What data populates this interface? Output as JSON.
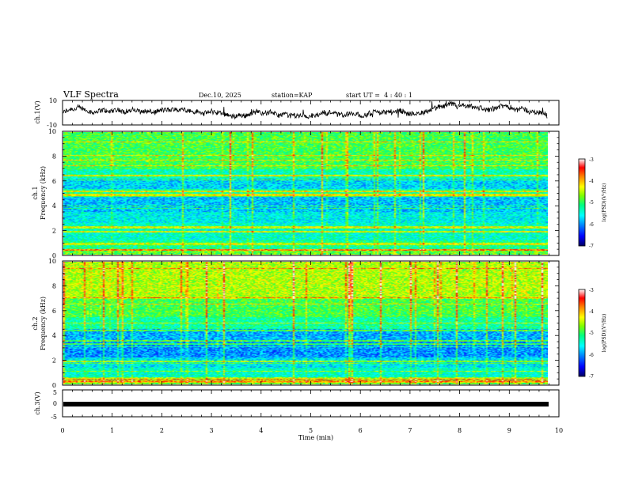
{
  "header": {
    "title": "VLF Spectra",
    "date": "Dec.10, 2025",
    "station": "station=KAP",
    "start": "start UT =  4 : 40 : 1"
  },
  "colors": {
    "spectrogram_scale": [
      "#000060",
      "#0000ff",
      "#0090ff",
      "#00ffff",
      "#00ff80",
      "#80ff00",
      "#ffff00",
      "#ff8000",
      "#ff0000",
      "#ffffff"
    ],
    "trace": "#000000"
  },
  "chart_data": [
    {
      "type": "line",
      "name": "ch1-waveform",
      "ylabel": "ch.1(V)",
      "ylim": [
        -10,
        10
      ],
      "yticks": [
        "10",
        "-10"
      ],
      "xlim": [
        0,
        10
      ],
      "description_values": "noisy waveform oscillating roughly between -5 and 5 V over 0 to 9.85 min"
    },
    {
      "type": "heatmap",
      "name": "ch1-spectrogram",
      "ylabel": "ch.1\nFrequency (kHz)",
      "ylim": [
        0,
        10
      ],
      "yticks": [
        "0",
        "2",
        "4",
        "6",
        "8",
        "10"
      ],
      "xlim": [
        0,
        9.85
      ],
      "colorbar": {
        "label": "log(PSD)(V²/Hz)",
        "range": [
          -7,
          -3
        ],
        "ticks": [
          "-3",
          "-4",
          "-5",
          "-6",
          "-7"
        ]
      }
    },
    {
      "type": "heatmap",
      "name": "ch2-spectrogram",
      "ylabel": "ch.2\nFrequency (kHz)",
      "ylim": [
        0,
        10
      ],
      "yticks": [
        "0",
        "2",
        "4",
        "6",
        "8",
        "10"
      ],
      "xlim": [
        0,
        9.85
      ],
      "colorbar": {
        "label": "log(PSD)(V²/Hz)",
        "range": [
          -7,
          -3
        ],
        "ticks": [
          "-3",
          "-4",
          "-5",
          "-6",
          "-7"
        ]
      }
    },
    {
      "type": "line",
      "name": "ch3-waveform",
      "ylabel": "ch.3(V)",
      "ylim": [
        -5,
        5
      ],
      "yticks": [
        "5",
        "0",
        "-5"
      ],
      "xlim": [
        0,
        10
      ],
      "level": 0
    }
  ],
  "xaxis": {
    "label": "Time (min)",
    "ticks": [
      "0",
      "1",
      "2",
      "3",
      "4",
      "5",
      "6",
      "7",
      "8",
      "9",
      "10"
    ]
  }
}
